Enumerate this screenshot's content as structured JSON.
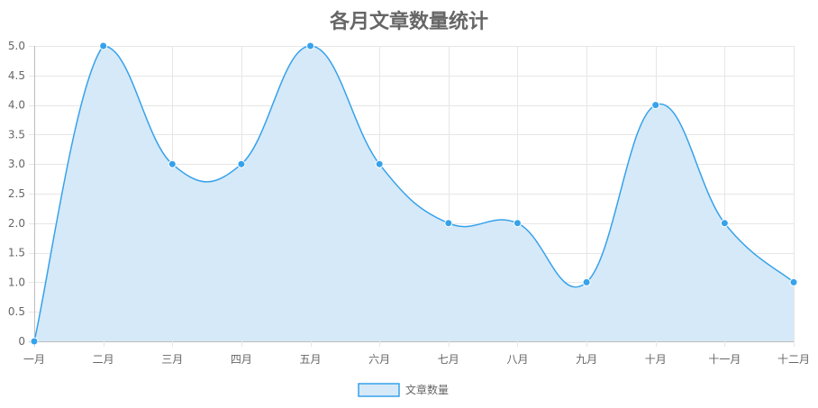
{
  "chart_data": {
    "type": "area",
    "title": "各月文章数量统计",
    "categories": [
      "一月",
      "二月",
      "三月",
      "四月",
      "五月",
      "六月",
      "七月",
      "八月",
      "九月",
      "十月",
      "十一月",
      "十二月"
    ],
    "series": [
      {
        "name": "文章数量",
        "values": [
          0,
          5,
          3,
          3,
          5,
          3,
          2,
          2,
          1,
          4,
          2,
          1
        ],
        "line_color": "#36a2eb",
        "fill_color": "#d6e9f8",
        "point_color": "#36a2eb"
      }
    ],
    "y_ticks": [
      "0",
      "0.5",
      "1.0",
      "1.5",
      "2.0",
      "2.5",
      "3.0",
      "3.5",
      "4.0",
      "4.5",
      "5.0"
    ],
    "ylim": [
      0,
      5
    ],
    "grid": true,
    "legend": "bottom"
  }
}
